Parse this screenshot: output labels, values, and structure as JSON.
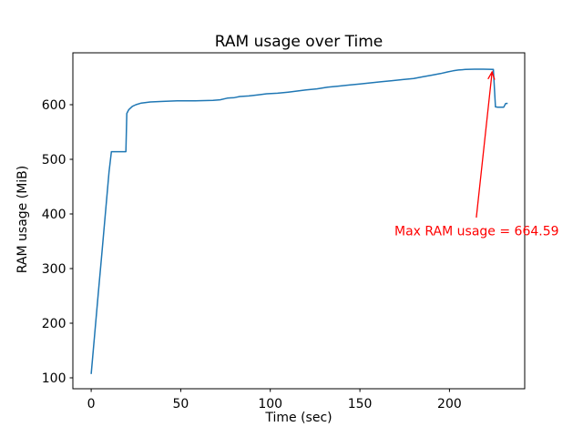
{
  "figure": {
    "background": "#ffffff",
    "text_color": "#000000",
    "spine_color": "#000000"
  },
  "chart_data": {
    "type": "line",
    "title": "RAM usage over Time",
    "xlabel": "Time (sec)",
    "ylabel": "RAM usage (MiB)",
    "xlim": [
      -10.2,
      242.0
    ],
    "ylim": [
      80,
      695
    ],
    "xticks": [
      0,
      50,
      100,
      150,
      200
    ],
    "yticks": [
      100,
      200,
      300,
      400,
      500,
      600
    ],
    "grid": false,
    "legend": null,
    "line_color": "#1f77b4",
    "line_width": 1.5,
    "max_value": 664.59,
    "series": [
      {
        "name": "RAM usage",
        "points": [
          [
            0,
            107
          ],
          [
            2,
            181
          ],
          [
            4,
            255
          ],
          [
            6,
            329
          ],
          [
            8,
            403
          ],
          [
            10,
            477
          ],
          [
            11.3,
            514
          ],
          [
            19.4,
            514
          ],
          [
            19.9,
            584
          ],
          [
            21,
            591
          ],
          [
            23,
            597
          ],
          [
            25,
            600
          ],
          [
            28,
            603
          ],
          [
            33,
            605
          ],
          [
            40,
            606
          ],
          [
            48,
            607
          ],
          [
            58,
            607
          ],
          [
            68,
            608
          ],
          [
            72,
            609
          ],
          [
            76,
            612
          ],
          [
            80,
            613
          ],
          [
            83,
            615
          ],
          [
            88,
            616
          ],
          [
            93,
            618
          ],
          [
            98,
            620
          ],
          [
            104,
            621
          ],
          [
            110,
            623
          ],
          [
            115,
            625
          ],
          [
            120,
            627
          ],
          [
            126,
            629
          ],
          [
            132,
            632
          ],
          [
            138,
            634
          ],
          [
            144,
            636
          ],
          [
            150,
            638
          ],
          [
            156,
            640
          ],
          [
            162,
            642
          ],
          [
            168,
            644
          ],
          [
            174,
            646
          ],
          [
            180,
            648
          ],
          [
            185,
            651
          ],
          [
            190,
            654
          ],
          [
            195,
            657
          ],
          [
            199,
            660
          ],
          [
            202,
            662
          ],
          [
            205,
            663.5
          ],
          [
            209,
            664.5
          ],
          [
            214,
            665
          ],
          [
            219,
            665
          ],
          [
            224.5,
            664.59
          ],
          [
            225.7,
            596
          ],
          [
            227,
            595.5
          ],
          [
            230.3,
            595.5
          ],
          [
            231.3,
            602
          ],
          [
            232.5,
            602.5
          ]
        ]
      }
    ],
    "annotation": {
      "text": "Max RAM usage = 664.59",
      "color": "#ff0000",
      "text_pos": [
        169.3,
        360.8
      ],
      "arrow_tail": [
        215.0,
        393.3
      ],
      "arrow_tip": [
        223.8,
        660.0
      ]
    }
  }
}
